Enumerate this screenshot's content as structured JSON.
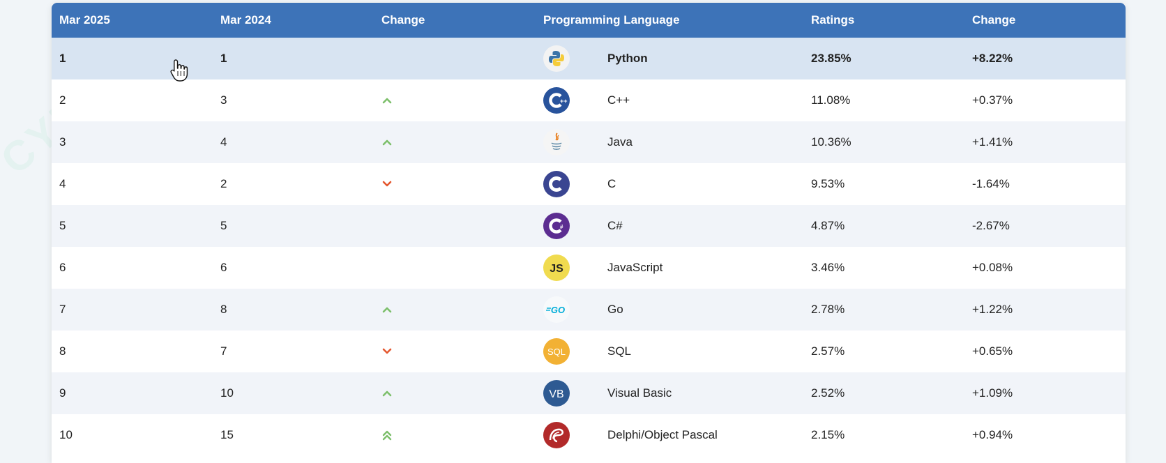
{
  "table": {
    "headers": [
      "Mar 2025",
      "Mar 2024",
      "Change",
      "Programming Language",
      "Ratings",
      "Change"
    ],
    "rows": [
      {
        "rank_2025": "1",
        "rank_2024": "1",
        "trend": "none",
        "logo": "python-icon",
        "language": "Python",
        "rating": "23.85%",
        "change": "+8.22%"
      },
      {
        "rank_2025": "2",
        "rank_2024": "3",
        "trend": "up",
        "logo": "cplusplus-icon",
        "language": "C++",
        "rating": "11.08%",
        "change": "+0.37%"
      },
      {
        "rank_2025": "3",
        "rank_2024": "4",
        "trend": "up",
        "logo": "java-icon",
        "language": "Java",
        "rating": "10.36%",
        "change": "+1.41%"
      },
      {
        "rank_2025": "4",
        "rank_2024": "2",
        "trend": "down",
        "logo": "c-icon",
        "language": "C",
        "rating": "9.53%",
        "change": "-1.64%"
      },
      {
        "rank_2025": "5",
        "rank_2024": "5",
        "trend": "none",
        "logo": "csharp-icon",
        "language": "C#",
        "rating": "4.87%",
        "change": "-2.67%"
      },
      {
        "rank_2025": "6",
        "rank_2024": "6",
        "trend": "none",
        "logo": "javascript-icon",
        "language": "JavaScript",
        "rating": "3.46%",
        "change": "+0.08%"
      },
      {
        "rank_2025": "7",
        "rank_2024": "8",
        "trend": "up",
        "logo": "go-icon",
        "language": "Go",
        "rating": "2.78%",
        "change": "+1.22%"
      },
      {
        "rank_2025": "8",
        "rank_2024": "7",
        "trend": "down",
        "logo": "sql-icon",
        "language": "SQL",
        "rating": "2.57%",
        "change": "+0.65%"
      },
      {
        "rank_2025": "9",
        "rank_2024": "10",
        "trend": "up",
        "logo": "visualbasic-icon",
        "language": "Visual Basic",
        "rating": "2.52%",
        "change": "+1.09%"
      },
      {
        "rank_2025": "10",
        "rank_2024": "15",
        "trend": "double-up",
        "logo": "delphi-icon",
        "language": "Delphi/Object Pascal",
        "rating": "2.15%",
        "change": "+0.94%"
      }
    ]
  },
  "colors": {
    "header_bg": "#3d73b8",
    "up_arrow": "#7cbf6a",
    "down_arrow": "#e4572e",
    "highlight_row": "#d8e4f2"
  }
}
